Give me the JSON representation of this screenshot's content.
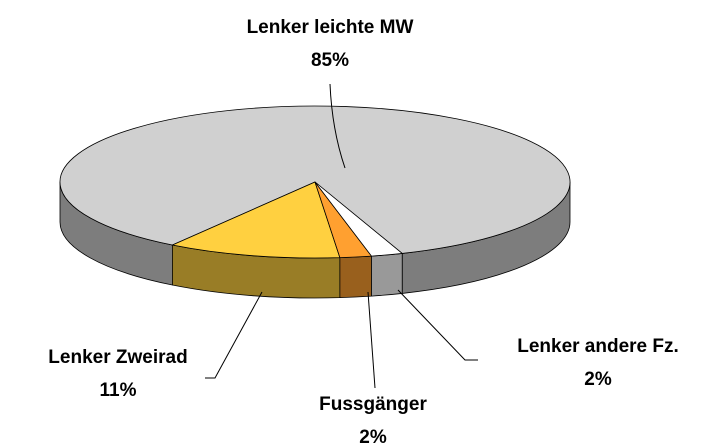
{
  "chart_data": {
    "type": "pie3d",
    "categories": [
      "Lenker leichte MW",
      "Lenker Zweirad",
      "Fussgänger",
      "Lenker andere Fz."
    ],
    "values": [
      85,
      11,
      2,
      2
    ],
    "value_labels": [
      "85%",
      "11%",
      "2%",
      "2%"
    ],
    "colors": [
      "#d0d0d0",
      "#ffd040",
      "#ffa030",
      "#ffffff"
    ]
  }
}
